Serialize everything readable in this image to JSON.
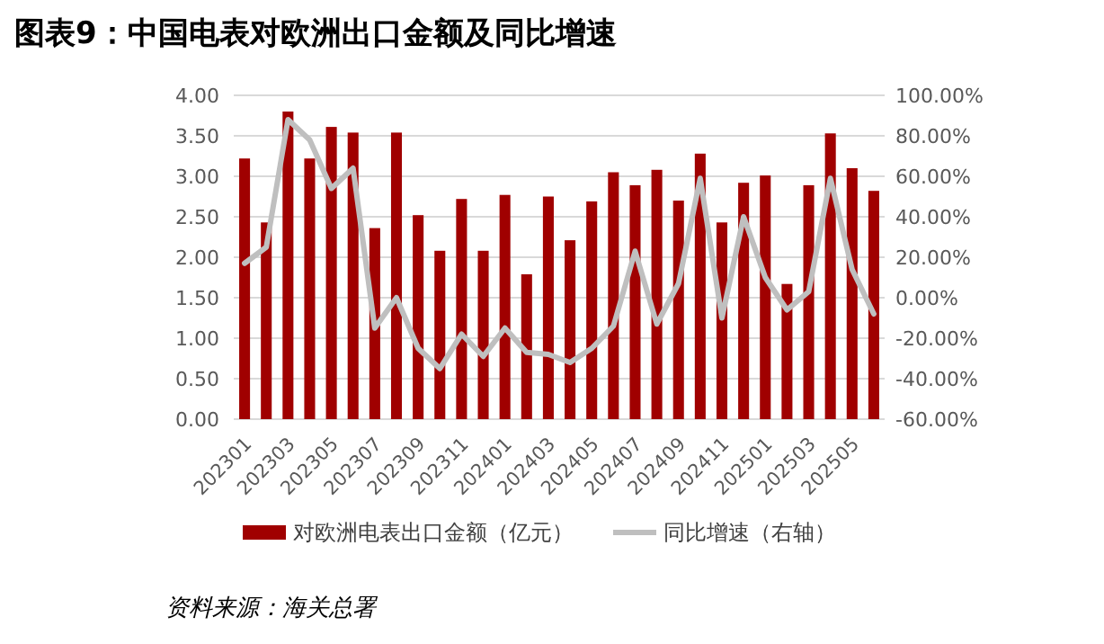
{
  "chart_data": {
    "type": "bar",
    "title": "图表9：中国电表对欧洲出口金额及同比增速",
    "categories": [
      "202301",
      null,
      "202303",
      null,
      "202305",
      null,
      "202307",
      null,
      "202309",
      null,
      "202311",
      null,
      "202401",
      null,
      "202403",
      null,
      "202405",
      null,
      "202407",
      null,
      "202409",
      null,
      "202411",
      null,
      "202501",
      null,
      "202503",
      null,
      "202505",
      null
    ],
    "series": [
      {
        "name": "对欧洲电表出口金额（亿元）",
        "color": "#a00000",
        "values": [
          3.22,
          2.43,
          3.8,
          3.22,
          3.61,
          3.54,
          2.36,
          3.54,
          2.52,
          2.08,
          2.72,
          2.08,
          2.77,
          1.79,
          2.75,
          2.21,
          2.69,
          3.05,
          2.89,
          3.08,
          2.7,
          3.28,
          2.43,
          2.92,
          3.01,
          1.67,
          2.89,
          3.53,
          3.1,
          2.82
        ]
      },
      {
        "name": "同比增速（右轴）",
        "type": "line",
        "axis": "y2",
        "color": "#bfbfbf",
        "values": [
          17,
          25,
          88,
          78,
          54,
          64,
          -15,
          0,
          -25,
          -35,
          -18,
          -29,
          -15,
          -27,
          -28,
          -32,
          -25,
          -14,
          23,
          -13,
          7,
          59,
          -10,
          40,
          10,
          -6,
          3,
          59,
          14,
          -8
        ]
      }
    ],
    "ylim": [
      0,
      4
    ],
    "yticks": [
      {
        "value": 0,
        "label": "0.00"
      },
      {
        "value": 0.5,
        "label": "0.50"
      },
      {
        "value": 1,
        "label": "1.00"
      },
      {
        "value": 1.5,
        "label": "1.50"
      },
      {
        "value": 2,
        "label": "2.00"
      },
      {
        "value": 2.5,
        "label": "2.50"
      },
      {
        "value": 3,
        "label": "3.00"
      },
      {
        "value": 3.5,
        "label": "3.50"
      },
      {
        "value": 4,
        "label": "4.00"
      }
    ],
    "y2lim": [
      -60,
      100
    ],
    "y2ticks": [
      {
        "value": -60,
        "label": "-60.00%"
      },
      {
        "value": -40,
        "label": "-40.00%"
      },
      {
        "value": -20,
        "label": "-20.00%"
      },
      {
        "value": 0,
        "label": "0.00%"
      },
      {
        "value": 20,
        "label": "20.00%"
      },
      {
        "value": 40,
        "label": "40.00%"
      },
      {
        "value": 60,
        "label": "60.00%"
      },
      {
        "value": 80,
        "label": "80.00%"
      },
      {
        "value": 100,
        "label": "100.00%"
      }
    ],
    "grid": "y",
    "legend": "bottom",
    "annotations": [
      "资料来源：海关总署"
    ]
  }
}
